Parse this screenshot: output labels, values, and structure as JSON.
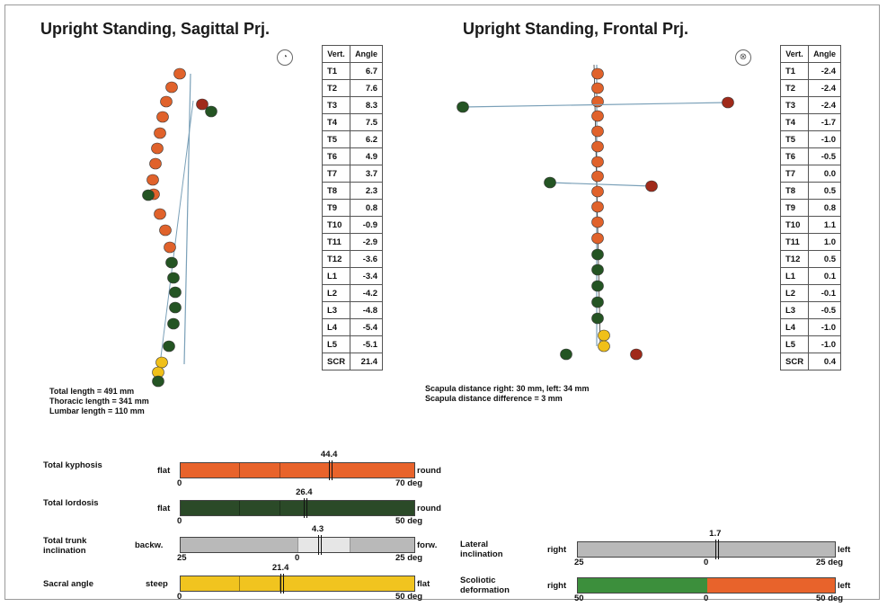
{
  "sagittal": {
    "title": "Upright Standing, Sagittal Prj.",
    "symbol": "◔",
    "table_header": [
      "Vert.",
      "Angle"
    ],
    "rows": [
      [
        "T1",
        "6.7"
      ],
      [
        "T2",
        "7.6"
      ],
      [
        "T3",
        "8.3"
      ],
      [
        "T4",
        "7.5"
      ],
      [
        "T5",
        "6.2"
      ],
      [
        "T6",
        "4.9"
      ],
      [
        "T7",
        "3.7"
      ],
      [
        "T8",
        "2.3"
      ],
      [
        "T9",
        "0.8"
      ],
      [
        "T10",
        "-0.9"
      ],
      [
        "T11",
        "-2.9"
      ],
      [
        "T12",
        "-3.6"
      ],
      [
        "L1",
        "-3.4"
      ],
      [
        "L2",
        "-4.2"
      ],
      [
        "L3",
        "-4.8"
      ],
      [
        "L4",
        "-5.4"
      ],
      [
        "L5",
        "-5.1"
      ],
      [
        "SCR",
        "21.4"
      ]
    ],
    "info_lines": [
      "Total length = 491 mm",
      "Thoracic length = 341 mm",
      "Lumbar length = 110 mm"
    ]
  },
  "frontal": {
    "title": "Upright Standing, Frontal Prj.",
    "symbol": "⊗",
    "table_header": [
      "Vert.",
      "Angle"
    ],
    "rows": [
      [
        "T1",
        "-2.4"
      ],
      [
        "T2",
        "-2.4"
      ],
      [
        "T3",
        "-2.4"
      ],
      [
        "T4",
        "-1.7"
      ],
      [
        "T5",
        "-1.0"
      ],
      [
        "T6",
        "-0.5"
      ],
      [
        "T7",
        "0.0"
      ],
      [
        "T8",
        "0.5"
      ],
      [
        "T9",
        "0.8"
      ],
      [
        "T10",
        "1.1"
      ],
      [
        "T11",
        "1.0"
      ],
      [
        "T12",
        "0.5"
      ],
      [
        "L1",
        "0.1"
      ],
      [
        "L2",
        "-0.1"
      ],
      [
        "L3",
        "-0.5"
      ],
      [
        "L4",
        "-1.0"
      ],
      [
        "L5",
        "-1.0"
      ],
      [
        "SCR",
        "0.4"
      ]
    ],
    "info_lines": [
      "Scapula distance right: 30 mm, left: 34 mm",
      "Scapula distance difference = 3 mm"
    ]
  },
  "gauges": [
    {
      "id": "kyphosis",
      "label": "Total kyphosis",
      "left_label": "flat",
      "right_label": "round",
      "min": "0",
      "max": "70 deg",
      "value": "44.4",
      "value_num": 44.4,
      "range": [
        0,
        70
      ],
      "color": "#e8632b"
    },
    {
      "id": "lordosis",
      "label": "Total lordosis",
      "left_label": "flat",
      "right_label": "round",
      "min": "0",
      "max": "50 deg",
      "value": "26.4",
      "value_num": 26.4,
      "range": [
        0,
        50
      ],
      "color": "#2b4a28"
    },
    {
      "id": "trunk",
      "label": "Total trunk inclination",
      "left_label": "backw.",
      "right_label": "forw.",
      "min": "25",
      "mid": "0",
      "max": "25 deg",
      "value": "4.3",
      "value_num": 4.3,
      "range": [
        -25,
        25
      ],
      "color": "#b9b9b9"
    },
    {
      "id": "sacral",
      "label": "Sacral angle",
      "left_label": "steep",
      "right_label": "flat",
      "min": "0",
      "max": "50 deg",
      "value": "21.4",
      "value_num": 21.4,
      "range": [
        0,
        50
      ],
      "color": "#f1c41f"
    },
    {
      "id": "lateral",
      "label": "Lateral inclination",
      "left_label": "right",
      "right_label": "left",
      "min": "25",
      "mid": "0",
      "max": "25 deg",
      "value": "1.7",
      "value_num": 1.7,
      "range": [
        -25,
        25
      ],
      "color": "#b9b9b9"
    },
    {
      "id": "scoliotic",
      "label": "Scoliotic deformation",
      "left_label": "right",
      "right_label": "left",
      "min": "50",
      "mid": "0",
      "max": "50 deg",
      "color_left": "#3c8f3c",
      "color_right": "#e8632b"
    }
  ],
  "colors": {
    "orange": "#e0622b",
    "green": "#245423",
    "red": "#a02a1a",
    "yellow": "#f0c01a",
    "line": "#7aa0b8"
  }
}
